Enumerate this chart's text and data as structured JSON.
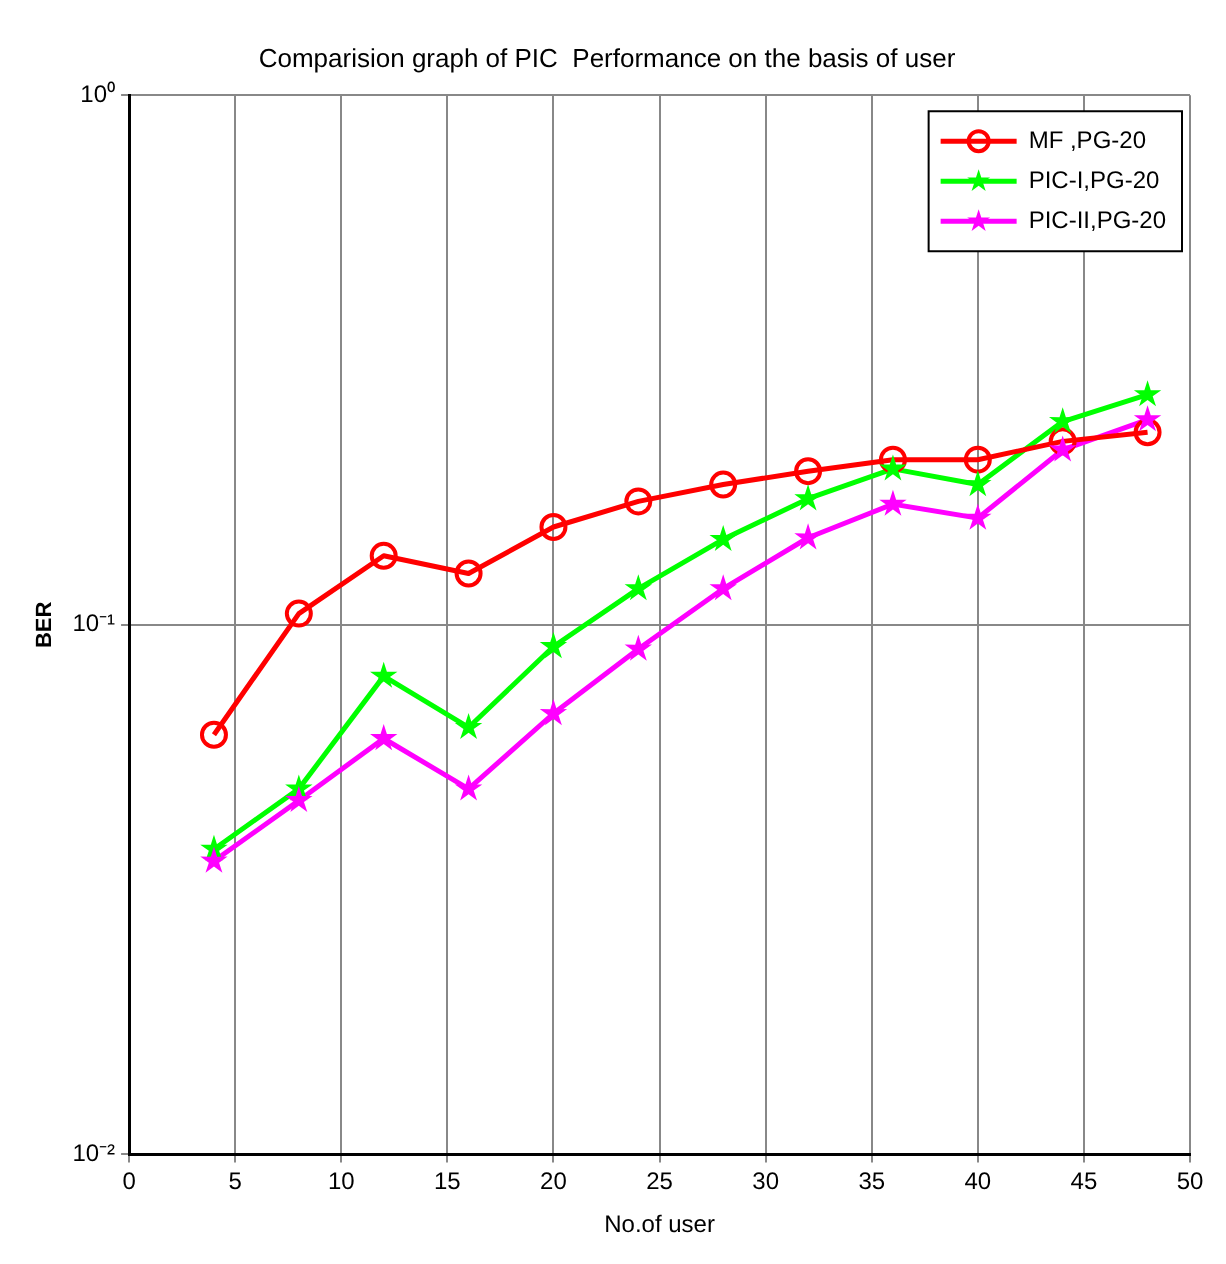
{
  "chart_data": {
    "type": "line",
    "title": "Comparision graph of PIC  Performance on the basis of user",
    "xlabel": "No.of user",
    "ylabel": "BER",
    "x": [
      4,
      8,
      12,
      16,
      20,
      24,
      28,
      32,
      36,
      40,
      44,
      48
    ],
    "series": [
      {
        "name": "MF ,PG-20",
        "color": "#ff0000",
        "marker": "circle",
        "values": [
          0.062,
          0.105,
          0.135,
          0.125,
          0.153,
          0.171,
          0.184,
          0.195,
          0.205,
          0.205,
          0.222,
          0.231
        ]
      },
      {
        "name": "PIC-I,PG-20",
        "color": "#00ff00",
        "marker": "star",
        "values": [
          0.0377,
          0.049,
          0.08,
          0.064,
          0.091,
          0.117,
          0.145,
          0.173,
          0.197,
          0.184,
          0.242,
          0.272
        ]
      },
      {
        "name": "PIC-II,PG-20",
        "color": "#ff00ff",
        "marker": "star",
        "values": [
          0.0358,
          0.0466,
          0.061,
          0.049,
          0.068,
          0.09,
          0.117,
          0.146,
          0.169,
          0.159,
          0.214,
          0.244
        ]
      }
    ],
    "xlim": [
      0,
      50
    ],
    "xticks": [
      0,
      5,
      10,
      15,
      20,
      25,
      30,
      35,
      40,
      45,
      50
    ],
    "ylim": [
      0.01,
      1
    ],
    "yticks": [
      {
        "value": 0.01,
        "label": "10⁻²"
      },
      {
        "value": 0.1,
        "label": "10⁻¹"
      },
      {
        "value": 1,
        "label": "10⁰"
      }
    ],
    "log": "y",
    "grid": true,
    "legend": "top right",
    "line_style": "solid"
  }
}
